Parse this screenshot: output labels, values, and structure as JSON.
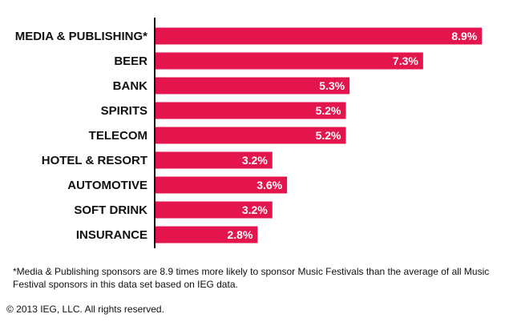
{
  "chart_data": {
    "type": "bar",
    "orientation": "horizontal",
    "categories": [
      "MEDIA & PUBLISHING*",
      "BEER",
      "BANK",
      "SPIRITS",
      "TELECOM",
      "HOTEL & RESORT",
      "AUTOMOTIVE",
      "SOFT DRINK",
      "INSURANCE"
    ],
    "values": [
      8.9,
      7.3,
      5.3,
      5.2,
      5.2,
      3.2,
      3.6,
      3.2,
      2.8
    ],
    "value_labels": [
      "8.9%",
      "7.3%",
      "5.3%",
      "5.2%",
      "5.2%",
      "3.2%",
      "3.6%",
      "3.2%",
      "2.8%"
    ],
    "xlim": [
      0,
      9.2
    ],
    "grid": false,
    "bar_color": "#e3154c",
    "axis_color": "#111111"
  },
  "footnote": "*Media & Publishing sponsors are 8.9 times more likely to sponsor Music Festivals than the average of all Music Festival sponsors in this data set based on IEG data.",
  "copyright": "© 2013 IEG, LLC. All rights reserved."
}
